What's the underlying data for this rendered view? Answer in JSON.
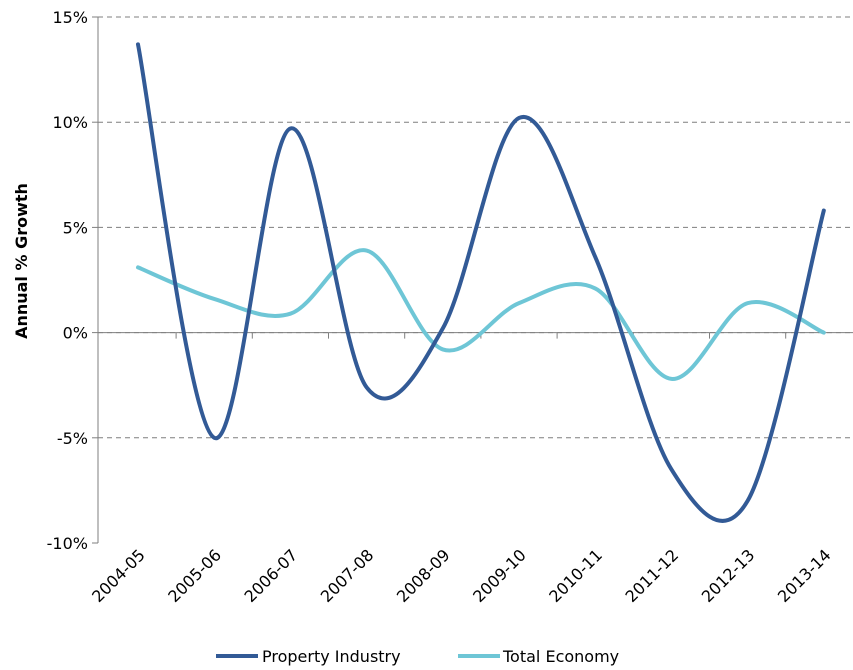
{
  "chart_data": {
    "type": "line",
    "xlabel": "",
    "ylabel": "Annual % Growth",
    "categories": [
      "2004-05",
      "2005-06",
      "2006-07",
      "2007-08",
      "2008-09",
      "2009-10",
      "2010-11",
      "2011-12",
      "2012-13",
      "2013-14"
    ],
    "y_ticks": [
      "15%",
      "10%",
      "5%",
      "0%",
      "-5%",
      "-10%"
    ],
    "ylim": [
      -10,
      15
    ],
    "grid": "horizontal dashed",
    "legend_position": "bottom",
    "series": [
      {
        "name": "Property Industry",
        "color": "#325a96",
        "values": [
          13.7,
          -5.0,
          9.7,
          -2.6,
          0.2,
          10.2,
          3.6,
          -6.5,
          -8.0,
          5.8
        ]
      },
      {
        "name": "Total Economy",
        "color": "#6ec6d6",
        "values": [
          3.1,
          1.6,
          0.9,
          3.9,
          -0.8,
          1.4,
          2.1,
          -2.2,
          1.4,
          0.0
        ]
      }
    ]
  }
}
